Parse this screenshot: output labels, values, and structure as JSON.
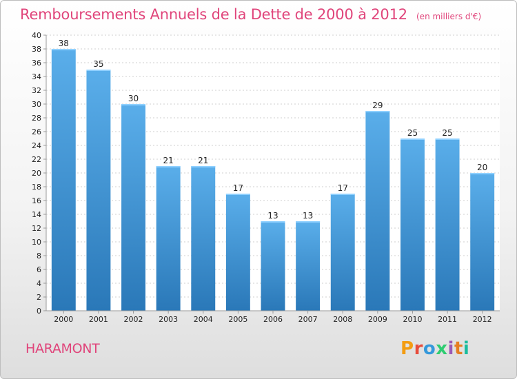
{
  "header": {
    "title": "Remboursements Annuels de la Dette de 2000 à 2012",
    "subtitle": "(en milliers d'€)"
  },
  "footer": {
    "commune": "HARAMONT",
    "logo_text": "Proxiti",
    "logo_colors": [
      "#f39c12",
      "#e74c3c",
      "#3498db",
      "#2ecc71",
      "#9b59b6",
      "#e67e22",
      "#1abc9c"
    ]
  },
  "chart_data": {
    "type": "bar",
    "title": "Remboursements Annuels de la Dette de 2000 à 2012",
    "subtitle": "(en milliers d'€)",
    "xlabel": "",
    "ylabel": "",
    "categories": [
      "2000",
      "2001",
      "2002",
      "2003",
      "2004",
      "2005",
      "2006",
      "2007",
      "2008",
      "2009",
      "2010",
      "2011",
      "2012"
    ],
    "values": [
      38,
      35,
      30,
      21,
      21,
      17,
      13,
      13,
      17,
      29,
      25,
      25,
      20
    ],
    "ylim": [
      0,
      40
    ],
    "ytick_step": 2,
    "grid": true,
    "legend": "none",
    "bar_color_top": "#5aaeea",
    "bar_color_bottom": "#2a78b8"
  }
}
